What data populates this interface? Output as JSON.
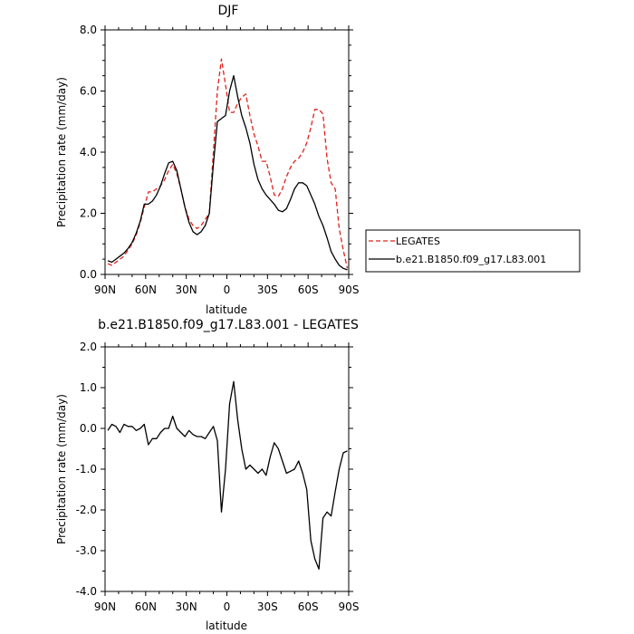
{
  "chart_data": [
    {
      "type": "line",
      "title": "DJF",
      "xlabel": "latitude",
      "ylabel": "Precipitation rate (mm/day)",
      "xlim": [
        90,
        -90
      ],
      "ylim": [
        0,
        8
      ],
      "xticks": [
        90,
        60,
        30,
        0,
        -30,
        -60,
        -90
      ],
      "xtick_labels": [
        "90N",
        "60N",
        "30N",
        "0",
        "30S",
        "60S",
        "90S"
      ],
      "yticks": [
        0,
        2,
        4,
        6,
        8
      ],
      "ytick_labels": [
        "0.0",
        "2.0",
        "4.0",
        "6.0",
        "8.0"
      ],
      "legend_position": "right, outside plot",
      "series": [
        {
          "name": "LEGATES",
          "color": "#e0201a",
          "dash": "dashed",
          "x": [
            88,
            85,
            82,
            79,
            76,
            73,
            70,
            67,
            64,
            61,
            58,
            55,
            52,
            49,
            46,
            43,
            40,
            37,
            34,
            31,
            28,
            25,
            22,
            19,
            16,
            13,
            10,
            7,
            4,
            1,
            -2,
            -5,
            -8,
            -11,
            -14,
            -17,
            -20,
            -23,
            -26,
            -29,
            -32,
            -35,
            -38,
            -41,
            -44,
            -47,
            -50,
            -53,
            -56,
            -59,
            -62,
            -65,
            -68,
            -71,
            -74,
            -77,
            -80,
            -83,
            -86,
            -89
          ],
          "values": [
            0.35,
            0.3,
            0.4,
            0.5,
            0.6,
            0.8,
            1.0,
            1.3,
            1.7,
            2.2,
            2.7,
            2.7,
            2.8,
            2.9,
            3.1,
            3.4,
            3.6,
            3.3,
            2.8,
            2.2,
            1.8,
            1.6,
            1.5,
            1.6,
            1.8,
            2.0,
            4.0,
            6.0,
            7.05,
            6.2,
            5.3,
            5.3,
            5.6,
            5.8,
            5.9,
            5.2,
            4.6,
            4.2,
            3.7,
            3.7,
            3.2,
            2.6,
            2.55,
            2.8,
            3.2,
            3.5,
            3.7,
            3.8,
            4.0,
            4.3,
            4.8,
            5.4,
            5.4,
            5.25,
            3.8,
            3.0,
            2.8,
            1.5,
            0.8,
            0.2
          ]
        },
        {
          "name": "b.e21.B1850.f09_g17.L83.001",
          "color": "#000000",
          "dash": "solid",
          "x": [
            88,
            85,
            82,
            79,
            76,
            73,
            70,
            67,
            64,
            61,
            58,
            55,
            52,
            49,
            46,
            43,
            40,
            37,
            34,
            31,
            28,
            25,
            22,
            19,
            16,
            13,
            10,
            7,
            4,
            1,
            -2,
            -5,
            -8,
            -11,
            -14,
            -17,
            -20,
            -23,
            -26,
            -29,
            -32,
            -35,
            -38,
            -41,
            -44,
            -47,
            -50,
            -53,
            -56,
            -59,
            -62,
            -65,
            -68,
            -71,
            -74,
            -77,
            -80,
            -83,
            -86,
            -89
          ],
          "values": [
            0.45,
            0.4,
            0.5,
            0.6,
            0.7,
            0.85,
            1.05,
            1.35,
            1.75,
            2.3,
            2.3,
            2.4,
            2.6,
            2.9,
            3.3,
            3.65,
            3.7,
            3.4,
            2.8,
            2.2,
            1.7,
            1.4,
            1.3,
            1.4,
            1.6,
            2.0,
            3.6,
            5.0,
            5.1,
            5.2,
            6.0,
            6.5,
            5.8,
            5.2,
            4.8,
            4.3,
            3.6,
            3.1,
            2.8,
            2.6,
            2.45,
            2.3,
            2.1,
            2.05,
            2.15,
            2.45,
            2.8,
            3.0,
            3.0,
            2.9,
            2.6,
            2.3,
            1.9,
            1.6,
            1.2,
            0.75,
            0.5,
            0.3,
            0.2,
            0.15
          ]
        }
      ]
    },
    {
      "type": "line",
      "title": "b.e21.B1850.f09_g17.L83.001 - LEGATES",
      "xlabel": "latitude",
      "ylabel": "Precipitation rate (mm/day)",
      "xlim": [
        90,
        -90
      ],
      "ylim": [
        -4,
        2
      ],
      "xticks": [
        90,
        60,
        30,
        0,
        -30,
        -60,
        -90
      ],
      "xtick_labels": [
        "90N",
        "60N",
        "30N",
        "0",
        "30S",
        "60S",
        "90S"
      ],
      "yticks": [
        2,
        1,
        0,
        -1,
        -2,
        -3,
        -4
      ],
      "ytick_labels": [
        "2.0",
        "1.0",
        "0.0",
        "-1.0",
        "-2.0",
        "-3.0",
        "-4.0"
      ],
      "series": [
        {
          "color": "#000000",
          "dash": "solid",
          "x": [
            88,
            85,
            82,
            79,
            76,
            73,
            70,
            67,
            64,
            61,
            58,
            55,
            52,
            49,
            46,
            43,
            40,
            37,
            34,
            31,
            28,
            25,
            22,
            19,
            16,
            13,
            10,
            7,
            4,
            1,
            -2,
            -5,
            -8,
            -11,
            -14,
            -17,
            -20,
            -23,
            -26,
            -29,
            -32,
            -35,
            -38,
            -41,
            -44,
            -47,
            -50,
            -53,
            -56,
            -59,
            -62,
            -65,
            -68,
            -71,
            -74,
            -77,
            -80,
            -83,
            -86,
            -89
          ],
          "values": [
            -0.05,
            0.1,
            0.05,
            -0.1,
            0.1,
            0.05,
            0.05,
            -0.05,
            0.0,
            0.1,
            -0.4,
            -0.25,
            -0.25,
            -0.1,
            0.0,
            0.0,
            0.3,
            0.0,
            -0.1,
            -0.2,
            -0.05,
            -0.15,
            -0.2,
            -0.2,
            -0.25,
            -0.1,
            0.05,
            -0.3,
            -2.05,
            -1.0,
            0.6,
            1.15,
            0.2,
            -0.5,
            -1.0,
            -0.9,
            -1.0,
            -1.1,
            -1.0,
            -1.15,
            -0.7,
            -0.35,
            -0.5,
            -0.8,
            -1.1,
            -1.05,
            -1.0,
            -0.8,
            -1.1,
            -1.5,
            -2.75,
            -3.2,
            -3.45,
            -2.2,
            -2.05,
            -2.15,
            -1.55,
            -1.0,
            -0.6,
            -0.55
          ]
        }
      ]
    }
  ]
}
